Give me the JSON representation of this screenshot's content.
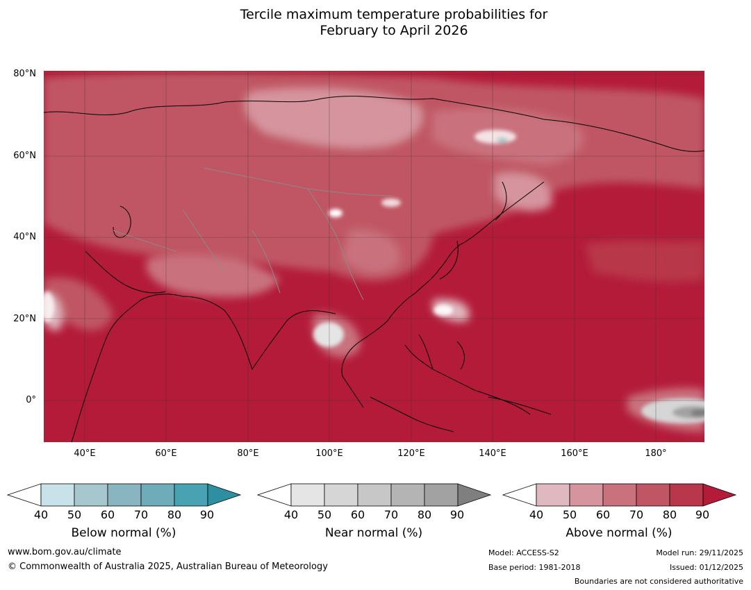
{
  "title": {
    "line1": "Tercile maximum temperature probabilities for",
    "line2": "February to April 2026"
  },
  "map": {
    "lat_labels": [
      "80°N",
      "60°N",
      "40°N",
      "20°N",
      "0°"
    ],
    "lon_labels": [
      "40°E",
      "60°E",
      "80°E",
      "100°E",
      "120°E",
      "140°E",
      "160°E",
      "180°"
    ],
    "dominant_colour": "#b31b39"
  },
  "colorbars": {
    "tick_values": [
      "40",
      "50",
      "60",
      "70",
      "80",
      "90"
    ],
    "below": {
      "label": "Below normal (%)",
      "colors": [
        "#c9e1e8",
        "#a6c7ce",
        "#89b5c0",
        "#6eacba",
        "#48a2b2",
        "#2e8ea2"
      ]
    },
    "near": {
      "label": "Near normal (%)",
      "colors": [
        "#e5e5e5",
        "#d6d6d6",
        "#c7c7c7",
        "#b4b4b4",
        "#a2a2a2",
        "#7f7f7f"
      ]
    },
    "above": {
      "label": "Above normal (%)",
      "colors": [
        "#e0b8bf",
        "#d6949e",
        "#c9727e",
        "#c05664",
        "#b8374a",
        "#b31b39"
      ]
    }
  },
  "footer": {
    "url": "www.bom.gov.au/climate",
    "copyright": "© Commonwealth of Australia 2025, Australian Bureau of Meteorology",
    "model": "Model: ACCESS-S2",
    "base_period": "Base period: 1981-2018",
    "model_run": "Model run: 29/11/2025",
    "issued": "Issued: 01/12/2025",
    "disclaimer": "Boundaries are not considered authoritative"
  }
}
